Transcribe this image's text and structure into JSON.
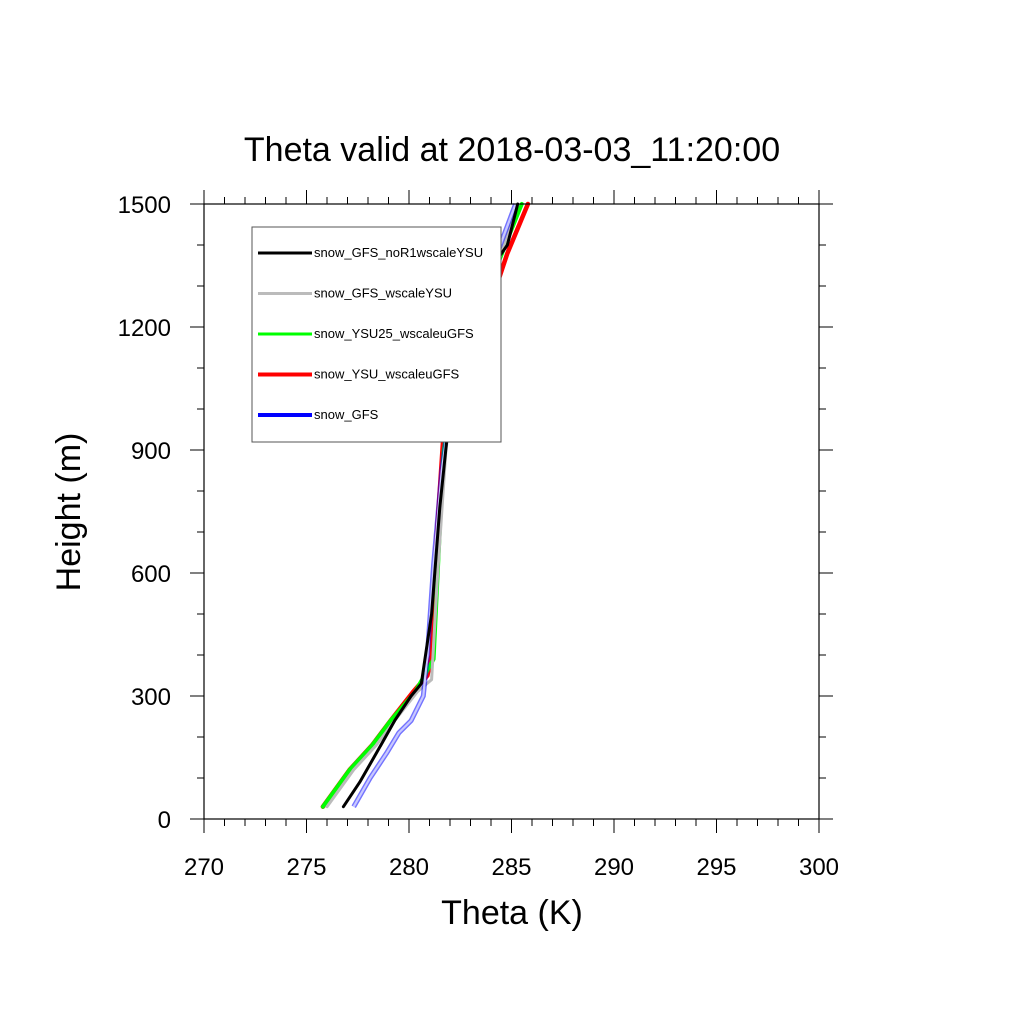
{
  "chart_data": {
    "type": "line",
    "title": "Theta valid at 2018-03-03_11:20:00",
    "xlabel": "Theta (K)",
    "ylabel": "Height (m)",
    "xlim": [
      270,
      300
    ],
    "ylim": [
      0,
      1500
    ],
    "xticks": [
      "270",
      "275",
      "280",
      "285",
      "290",
      "295",
      "300"
    ],
    "yticks": [
      "0",
      "300",
      "600",
      "900",
      "1200",
      "1500"
    ],
    "grid": false,
    "legend_position": "top-left",
    "series": [
      {
        "name": "snow_GFS_noR1wscaleYSU",
        "color": "#000000",
        "x": [
          276.8,
          277.6,
          278.4,
          279.3,
          280.1,
          280.6,
          281.1,
          281.5,
          281.9,
          282.4,
          283.3,
          284.1,
          284.8,
          285.3
        ],
        "y": [
          30,
          90,
          160,
          240,
          300,
          330,
          500,
          760,
          950,
          1130,
          1300,
          1350,
          1400,
          1500
        ]
      },
      {
        "name": "snow_GFS_wscaleYSU",
        "color": "#bbbbbb",
        "x": [
          276.0,
          277.3,
          278.4,
          279.3,
          280.4,
          281.1,
          281.4,
          281.8,
          282.4,
          283.5,
          284.5,
          285.3
        ],
        "y": [
          30,
          120,
          180,
          240,
          310,
          340,
          600,
          900,
          1120,
          1250,
          1380,
          1500
        ]
      },
      {
        "name": "snow_YSU25_wscaleuGFS",
        "color": "#00ff00",
        "x": [
          275.8,
          277.1,
          278.2,
          279.1,
          280.3,
          281.2,
          281.4,
          281.7,
          282.5,
          283.6,
          284.7,
          285.5
        ],
        "y": [
          30,
          120,
          180,
          240,
          310,
          390,
          600,
          900,
          1130,
          1260,
          1400,
          1500
        ]
      },
      {
        "name": "snow_YSU_wscaleuGFS",
        "color": "#ff0000",
        "x": [
          275.8,
          277.1,
          278.2,
          279.1,
          280.2,
          280.9,
          281.1,
          281.3,
          281.7,
          282.3,
          283.6,
          284.8,
          285.8
        ],
        "y": [
          30,
          120,
          180,
          240,
          310,
          350,
          400,
          650,
          950,
          1110,
          1200,
          1380,
          1500
        ]
      },
      {
        "name": "snow_GFS",
        "color": "#0000ff",
        "x": [
          277.3,
          278.1,
          278.9,
          279.5,
          280.1,
          280.7,
          280.9,
          281.2,
          281.6,
          282.3,
          283.3,
          284.3,
          285.2
        ],
        "y": [
          30,
          100,
          160,
          210,
          240,
          300,
          400,
          620,
          850,
          1110,
          1300,
          1380,
          1500
        ]
      }
    ]
  }
}
